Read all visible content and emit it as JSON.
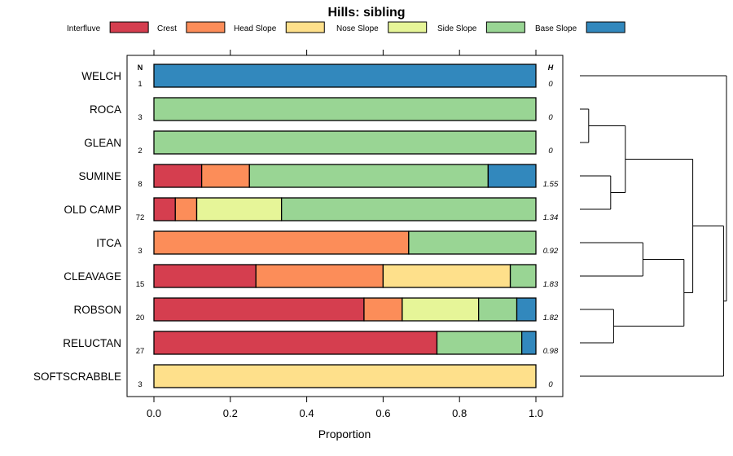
{
  "chart_data": {
    "type": "bar",
    "stacked": true,
    "orientation": "horizontal",
    "title": "Hills: sibling",
    "xlabel": "Proportion",
    "xlim": [
      0,
      1
    ],
    "x_ticks": [
      "0.0",
      "0.2",
      "0.4",
      "0.6",
      "0.8",
      "1.0"
    ],
    "x_tick_values": [
      0,
      0.2,
      0.4,
      0.6,
      0.8,
      1.0
    ],
    "n_header": "N",
    "h_header": "H",
    "legend_position": "top",
    "legend": [
      {
        "name": "Interfluve",
        "color": "#d53e4f"
      },
      {
        "name": "Crest",
        "color": "#fc8d59"
      },
      {
        "name": "Head Slope",
        "color": "#fee08b"
      },
      {
        "name": "Nose Slope",
        "color": "#e6f598"
      },
      {
        "name": "Side Slope",
        "color": "#99d594"
      },
      {
        "name": "Base Slope",
        "color": "#3288bd"
      }
    ],
    "rows": [
      {
        "label": "WELCH",
        "n": "1",
        "h": "0",
        "values": [
          0,
          0,
          0,
          0,
          0,
          1.0
        ]
      },
      {
        "label": "ROCA",
        "n": "3",
        "h": "0",
        "values": [
          0,
          0,
          0,
          0,
          1.0,
          0
        ]
      },
      {
        "label": "GLEAN",
        "n": "2",
        "h": "0",
        "values": [
          0,
          0,
          0,
          0,
          1.0,
          0
        ]
      },
      {
        "label": "SUMINE",
        "n": "8",
        "h": "1.55",
        "values": [
          0.125,
          0.125,
          0,
          0,
          0.625,
          0.125
        ]
      },
      {
        "label": "OLD CAMP",
        "n": "72",
        "h": "1.34",
        "values": [
          0.056,
          0.056,
          0,
          0.222,
          0.666,
          0
        ]
      },
      {
        "label": "ITCA",
        "n": "3",
        "h": "0.92",
        "values": [
          0,
          0.667,
          0,
          0,
          0.333,
          0
        ]
      },
      {
        "label": "CLEAVAGE",
        "n": "15",
        "h": "1.83",
        "values": [
          0.267,
          0.333,
          0.333,
          0,
          0.067,
          0
        ]
      },
      {
        "label": "ROBSON",
        "n": "20",
        "h": "1.82",
        "values": [
          0.55,
          0.1,
          0,
          0.2,
          0.1,
          0.05
        ]
      },
      {
        "label": "RELUCTAN",
        "n": "27",
        "h": "0.98",
        "values": [
          0.741,
          0,
          0,
          0,
          0.222,
          0.037
        ]
      },
      {
        "label": "SOFTSCRABBLE",
        "n": "3",
        "h": "0",
        "values": [
          0,
          0,
          1.0,
          0,
          0,
          0
        ]
      }
    ],
    "dendrogram": {
      "leaves": [
        "WELCH",
        "ROCA",
        "GLEAN",
        "SUMINE",
        "OLD CAMP",
        "ITCA",
        "CLEAVAGE",
        "ROBSON",
        "RELUCTAN",
        "SOFTSCRABBLE"
      ],
      "merges": [
        {
          "a": "ROCA",
          "b": "GLEAN",
          "height": 0.06
        },
        {
          "a": "SUMINE",
          "b": "OLD CAMP",
          "height": 0.21
        },
        {
          "a": "m0",
          "b": "m1",
          "height": 0.31
        },
        {
          "a": "ROBSON",
          "b": "RELUCTAN",
          "height": 0.23
        },
        {
          "a": "ITCA",
          "b": "CLEAVAGE",
          "height": 0.43
        },
        {
          "a": "m4",
          "b": "m3",
          "height": 0.71
        },
        {
          "a": "m2",
          "b": "m5",
          "height": 0.77
        },
        {
          "a": "m6",
          "b": "SOFTSCRABBLE",
          "height": 0.98
        },
        {
          "a": "WELCH",
          "b": "m7",
          "height": 1.0
        }
      ]
    }
  }
}
